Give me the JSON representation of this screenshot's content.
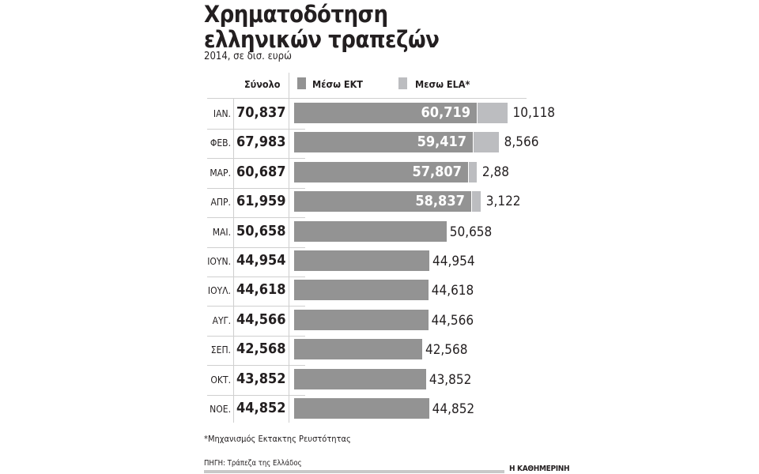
{
  "title_line1": "Χρηματοδότηση",
  "title_line2": "ελληνικών τραπεζών",
  "subtitle": "2014, σε δισ. ευρώ",
  "headers": {
    "total": "Σύνολο",
    "ecb": "Μέσω ΕΚΤ",
    "ela": "Μεσω ELA*"
  },
  "colors": {
    "ecb": "#939393",
    "ela": "#bcbdc0"
  },
  "rows": [
    {
      "month": "ΙΑΝ.",
      "total": "70,837",
      "ecb": "60,719",
      "ela": "10,118"
    },
    {
      "month": "ΦΕΒ.",
      "total": "67,983",
      "ecb": "59,417",
      "ela": "8,566"
    },
    {
      "month": "ΜΑΡ.",
      "total": "60,687",
      "ecb": "57,807",
      "ela": "2,88"
    },
    {
      "month": "ΑΠΡ.",
      "total": "61,959",
      "ecb": "58,837",
      "ela": "3,122"
    },
    {
      "month": "ΜΑΙ.",
      "total": "50,658",
      "ecb": "50,658",
      "ela": ""
    },
    {
      "month": "ΙΟΥΝ.",
      "total": "44,954",
      "ecb": "44,954",
      "ela": ""
    },
    {
      "month": "ΙΟΥΛ.",
      "total": "44,618",
      "ecb": "44,618",
      "ela": ""
    },
    {
      "month": "ΑΥΓ.",
      "total": "44,566",
      "ecb": "44,566",
      "ela": ""
    },
    {
      "month": "ΣΕΠ.",
      "total": "42,568",
      "ecb": "42,568",
      "ela": ""
    },
    {
      "month": "ΟΚΤ.",
      "total": "43,852",
      "ecb": "43,852",
      "ela": ""
    },
    {
      "month": "ΝΟΕ.",
      "total": "44,852",
      "ecb": "44,852",
      "ela": ""
    }
  ],
  "footnote": "*Μηχανισμός Εκτακτης Ρευστότητας",
  "source": "ΠΗΓΗ: Τράπεζα της Ελλάδος",
  "brand": "Η ΚΑΘΗΜΕΡΙΝΗ",
  "chart_data": {
    "type": "bar",
    "stacked": true,
    "orientation": "horizontal",
    "title": "Χρηματοδότηση ελληνικών τραπεζών",
    "subtitle": "2014, σε δισ. ευρώ",
    "categories": [
      "ΙΑΝ.",
      "ΦΕΒ.",
      "ΜΑΡ.",
      "ΑΠΡ.",
      "ΜΑΙ.",
      "ΙΟΥΝ.",
      "ΙΟΥΛ.",
      "ΑΥΓ.",
      "ΣΕΠ.",
      "ΟΚΤ.",
      "ΝΟΕ."
    ],
    "series": [
      {
        "name": "Μέσω ΕΚΤ",
        "values": [
          60.719,
          59.417,
          57.807,
          58.837,
          50.658,
          44.954,
          44.618,
          44.566,
          42.568,
          43.852,
          44.852
        ]
      },
      {
        "name": "Μεσω ELA*",
        "values": [
          10.118,
          8.566,
          2.88,
          3.122,
          0,
          0,
          0,
          0,
          0,
          0,
          0
        ]
      }
    ],
    "totals": [
      70.837,
      67.983,
      60.687,
      61.959,
      50.658,
      44.954,
      44.618,
      44.566,
      42.568,
      43.852,
      44.852
    ],
    "legend_position": "top",
    "grid": false
  }
}
